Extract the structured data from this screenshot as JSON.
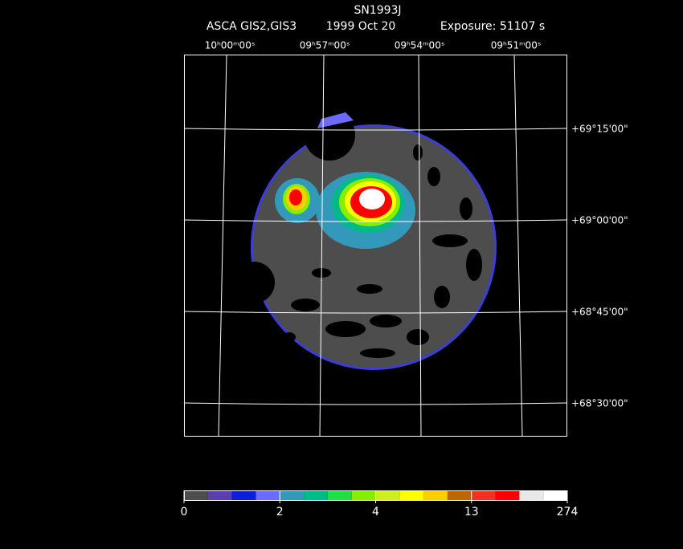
{
  "title": "SN1993J",
  "subtitle": {
    "instrument": "ASCA GIS2,GIS3",
    "date": "1999 Oct 20",
    "exposure": "Exposure: 51107 s"
  },
  "ra_labels": [
    "10ʰ00ᵐ00ˢ",
    "09ʰ57ᵐ00ˢ",
    "09ʰ54ᵐ00ˢ",
    "09ʰ51ᵐ00ˢ"
  ],
  "dec_labels": [
    "+69°15'00\"",
    "+69°00'00\"",
    "+68°45'00\"",
    "+68°30'00\""
  ],
  "colorbar": {
    "colors": [
      "#4d4d4d",
      "#5a3fb0",
      "#0a1fd6",
      "#6b6bff",
      "#3399bb",
      "#00bb88",
      "#22dd44",
      "#88ee00",
      "#ccee22",
      "#ffff00",
      "#ffcc00",
      "#bb6600",
      "#ee3322",
      "#ff0000",
      "#e8e8e8",
      "#ffffff"
    ],
    "ticks": [
      0,
      2,
      4,
      13,
      274
    ]
  }
}
